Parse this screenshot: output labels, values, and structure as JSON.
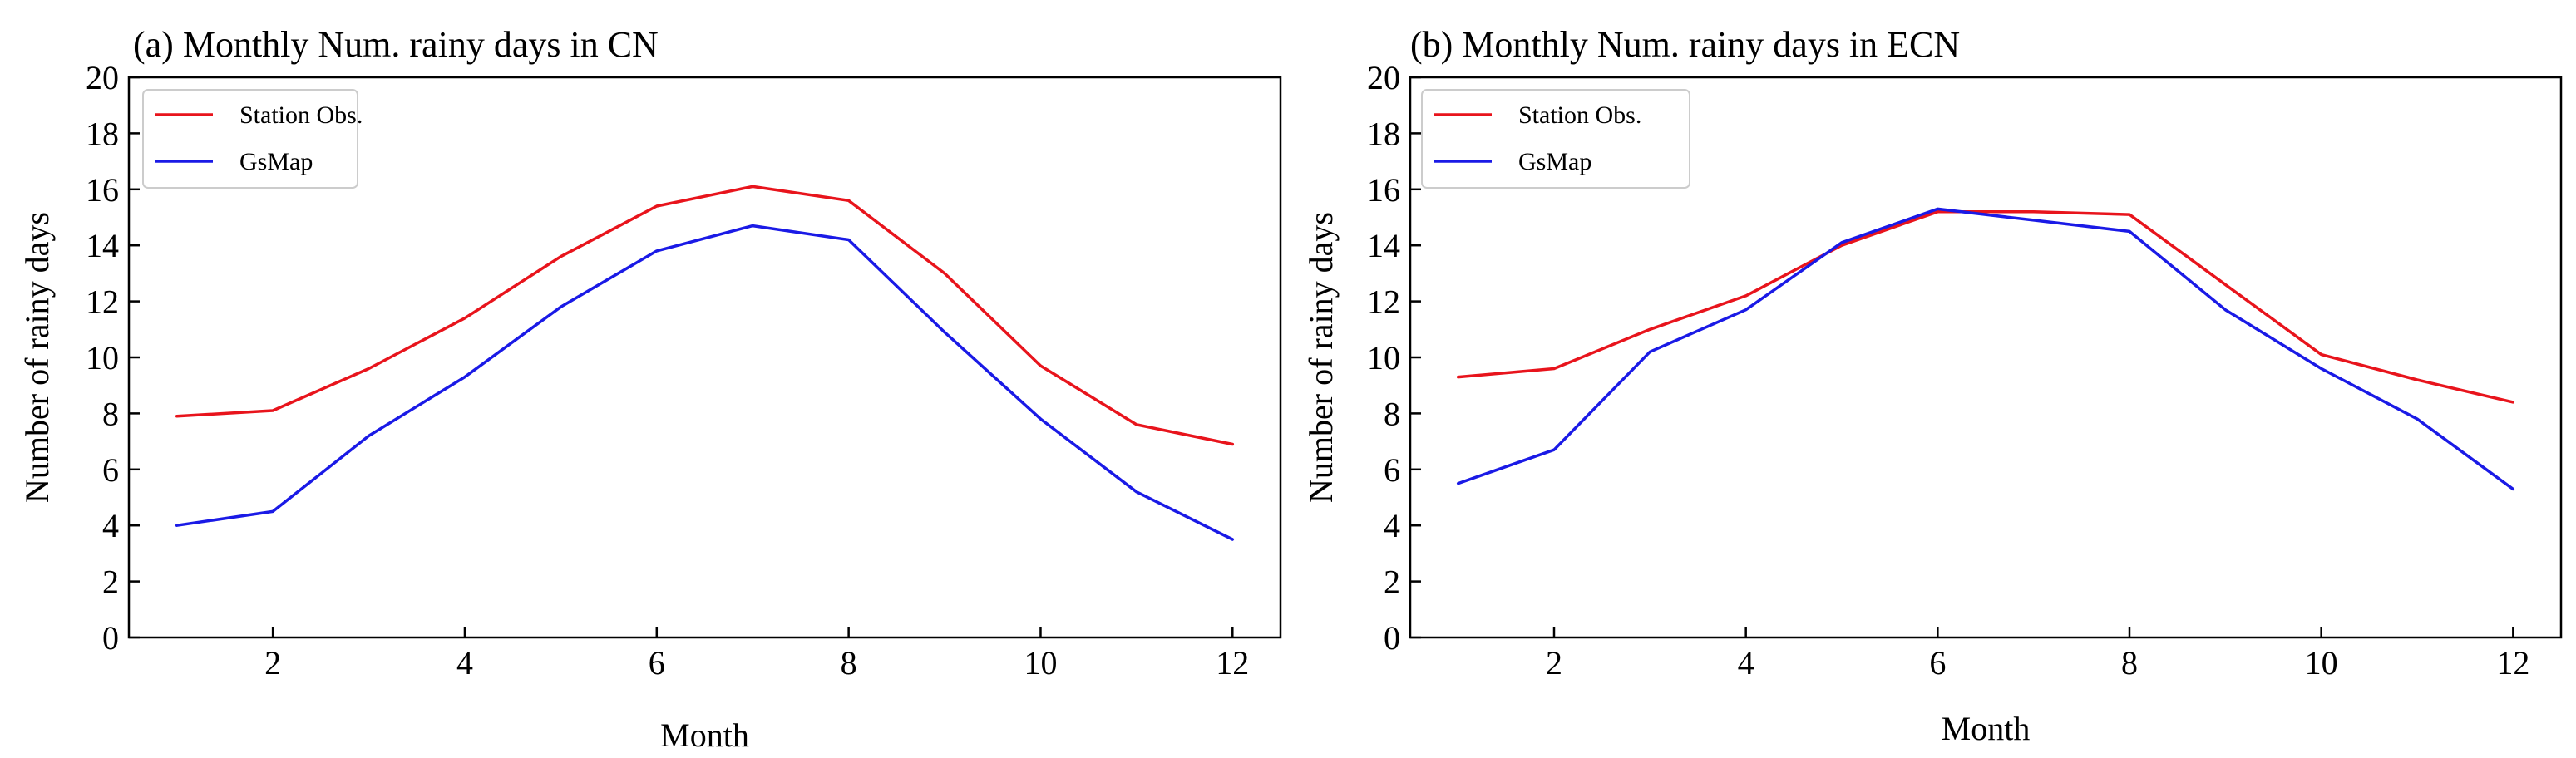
{
  "chart_data": [
    {
      "type": "line",
      "title": "(a) Monthly Num. rainy days in CN",
      "xlabel": "Month",
      "ylabel": "Number of rainy days",
      "x": [
        1,
        2,
        3,
        4,
        5,
        6,
        7,
        8,
        9,
        10,
        11,
        12
      ],
      "xlim": [
        0.5,
        12.5
      ],
      "ylim": [
        0,
        20
      ],
      "xticks": [
        2,
        4,
        6,
        8,
        10,
        12
      ],
      "yticks": [
        0,
        2,
        4,
        6,
        8,
        10,
        12,
        14,
        16,
        18,
        20
      ],
      "legend_position": "top-left",
      "grid": false,
      "series": [
        {
          "name": "Station Obs.",
          "color": "#e8141c",
          "values": [
            7.9,
            8.1,
            9.6,
            11.4,
            13.6,
            15.4,
            16.1,
            15.6,
            13.0,
            9.7,
            7.6,
            6.9
          ]
        },
        {
          "name": "GsMap",
          "color": "#1a1ae6",
          "values": [
            4.0,
            4.5,
            7.2,
            9.3,
            11.8,
            13.8,
            14.7,
            14.2,
            10.9,
            7.8,
            5.2,
            3.5
          ]
        }
      ]
    },
    {
      "type": "line",
      "title": "(b) Monthly Num. rainy days in ECN",
      "xlabel": "Month",
      "ylabel": "Number of rainy days",
      "x": [
        1,
        2,
        3,
        4,
        5,
        6,
        7,
        8,
        9,
        10,
        11,
        12
      ],
      "xlim": [
        0.5,
        12.5
      ],
      "ylim": [
        0,
        20
      ],
      "xticks": [
        2,
        4,
        6,
        8,
        10,
        12
      ],
      "yticks": [
        0,
        2,
        4,
        6,
        8,
        10,
        12,
        14,
        16,
        18,
        20
      ],
      "legend_position": "top-left",
      "grid": false,
      "series": [
        {
          "name": "Station Obs.",
          "color": "#e8141c",
          "values": [
            9.3,
            9.6,
            11.0,
            12.2,
            14.0,
            15.2,
            15.2,
            15.1,
            12.6,
            10.1,
            9.2,
            8.4
          ]
        },
        {
          "name": "GsMap",
          "color": "#1a1ae6",
          "values": [
            5.5,
            6.7,
            10.2,
            11.7,
            14.1,
            15.3,
            14.9,
            14.5,
            11.7,
            9.6,
            7.8,
            5.3
          ]
        }
      ]
    }
  ]
}
